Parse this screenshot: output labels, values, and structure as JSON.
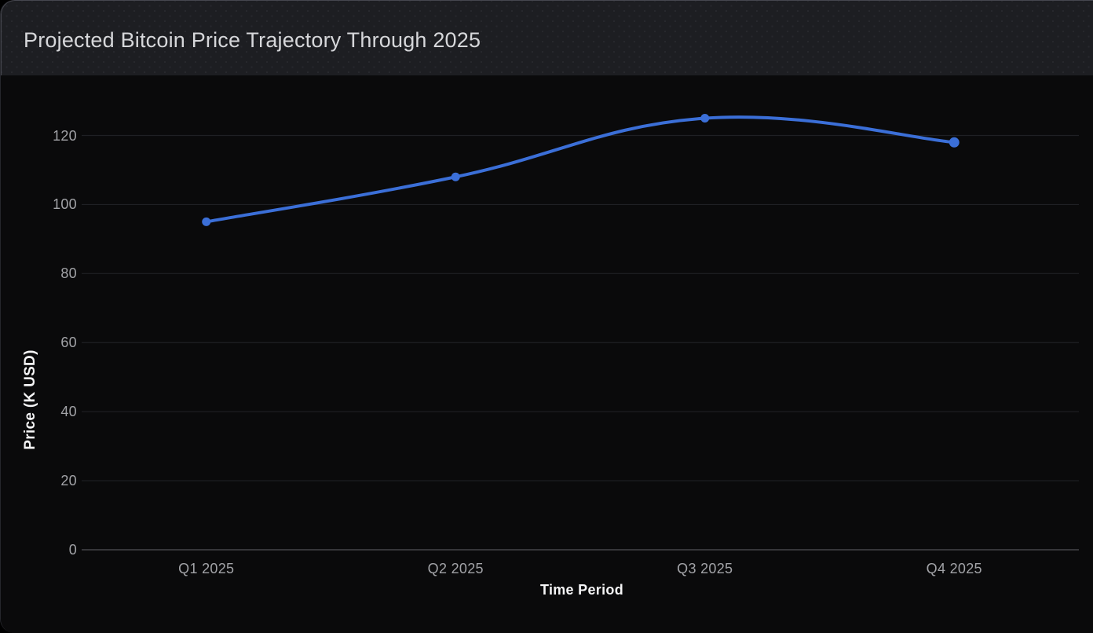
{
  "header": {
    "title": "Projected Bitcoin Price Trajectory Through 2025"
  },
  "chart_data": {
    "type": "line",
    "title": "Projected Bitcoin Price Trajectory Through 2025",
    "categories": [
      "Q1 2025",
      "Q2 2025",
      "Q3 2025",
      "Q4 2025"
    ],
    "series": [
      {
        "name": "Projected Bitcoin Price",
        "values": [
          95,
          108,
          125,
          118
        ]
      }
    ],
    "xlabel": "Time Period",
    "ylabel": "Price (K USD)",
    "ylim": [
      0,
      130
    ],
    "yticks": [
      0,
      20,
      40,
      60,
      80,
      100,
      120
    ],
    "grid": true,
    "legend": false,
    "line_style": "smooth",
    "colors": {
      "line": "#3b6fd8",
      "point": "#3b6fd8",
      "grid": "#1f2024",
      "zero_line": "#44454b",
      "tick_label": "#a2a3a7",
      "axis_label": "#f4f4f5",
      "chart_background": "#0a0a0b",
      "header_background": "#1d1e22"
    }
  }
}
